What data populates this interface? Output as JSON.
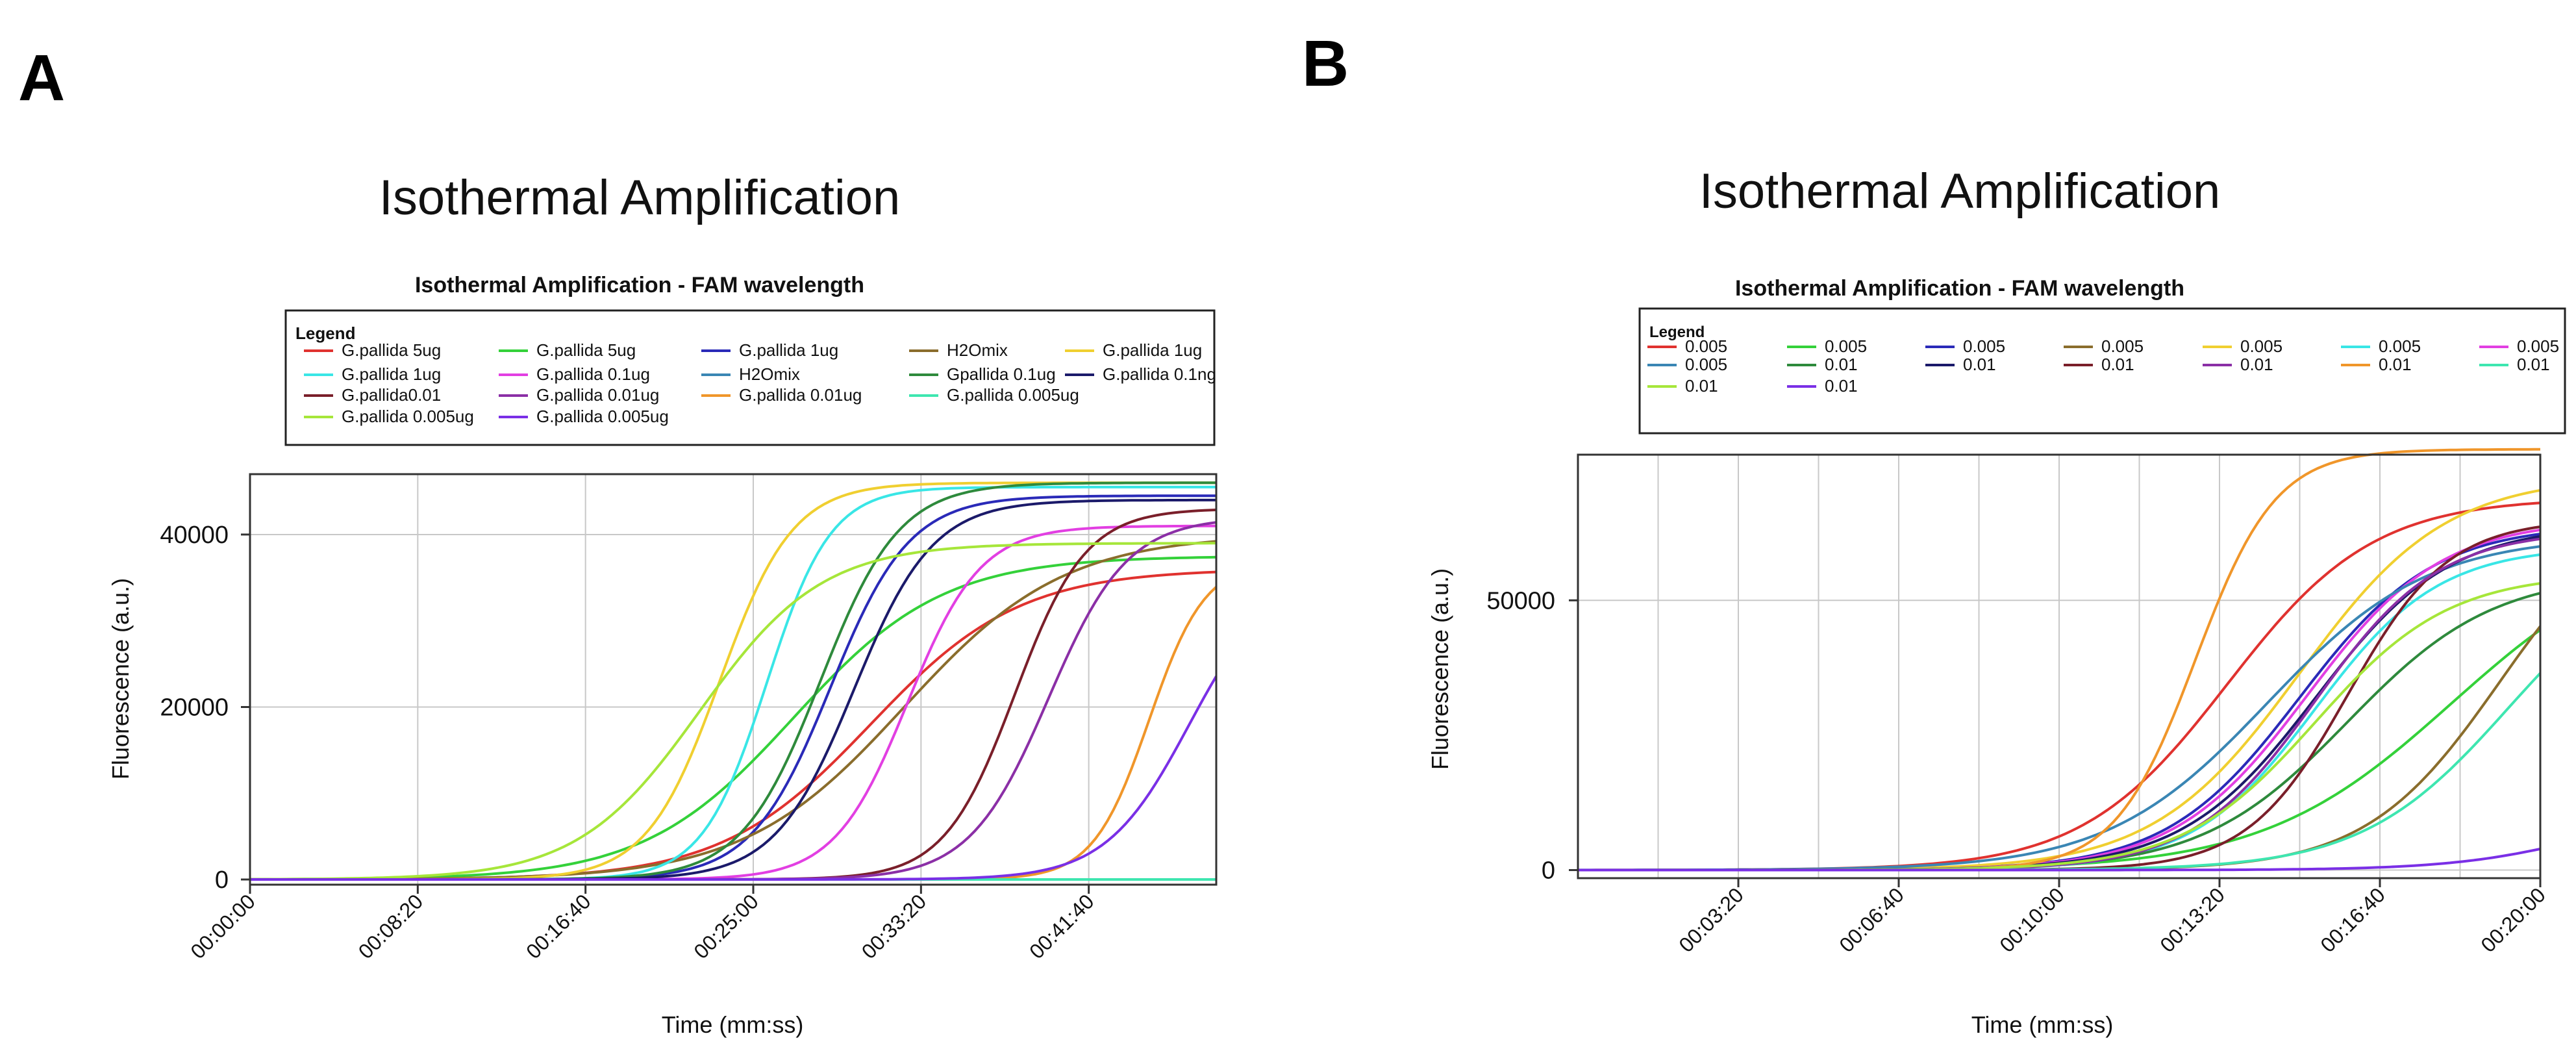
{
  "panels": [
    {
      "letter": "A"
    },
    {
      "letter": "B"
    }
  ],
  "colors": {
    "red": "#e0322f",
    "green": "#34d13a",
    "blue": "#2a2ab8",
    "olive": "#8a6d2c",
    "yellow": "#f0cf30",
    "cyan": "#39e6e6",
    "magenta": "#e23fe2",
    "steel": "#3a86b4",
    "dkgreen": "#2e8a3c",
    "navy": "#1b1a6a",
    "maroon": "#7a1f2a",
    "purple": "#8b2fa6",
    "orange": "#f0962a",
    "aqua": "#3ee6b0",
    "lime": "#a6e63a",
    "violet": "#7a2fe6"
  },
  "chart_data": [
    {
      "type": "line",
      "title": "Isothermal Amplification",
      "subtitle": "Isothermal Amplification - FAM wavelength",
      "xlabel": "Time (mm:ss)",
      "ylabel": "Fluorescence (a.u.)",
      "legend_title": "Legend",
      "legend_position": "top",
      "grid": true,
      "xlim": [
        0,
        2880
      ],
      "ylim": [
        -600,
        47000
      ],
      "x_ticks": [
        {
          "v": 0,
          "label": "00:00:00"
        },
        {
          "v": 500,
          "label": "00:08:20"
        },
        {
          "v": 1000,
          "label": "00:16:40"
        },
        {
          "v": 1500,
          "label": "00:25:00"
        },
        {
          "v": 2000,
          "label": "00:33:20"
        },
        {
          "v": 2500,
          "label": "00:41:40"
        }
      ],
      "x_grid": [
        0,
        500,
        1000,
        1500,
        2000,
        2500
      ],
      "y_ticks": [
        {
          "v": 0,
          "label": "0"
        },
        {
          "v": 20000,
          "label": "20000"
        },
        {
          "v": 40000,
          "label": "40000"
        }
      ],
      "series": [
        {
          "name": "G.pallida 5ug",
          "color": "red",
          "A": 36000,
          "k": 0.0045,
          "mid": 1850
        },
        {
          "name": "G.pallida 5ug",
          "color": "green",
          "A": 37500,
          "k": 0.0045,
          "mid": 1620
        },
        {
          "name": "G.pallida 1ug",
          "color": "blue",
          "A": 44500,
          "k": 0.0085,
          "mid": 1730
        },
        {
          "name": "H2Omix",
          "color": "olive",
          "A": 40000,
          "k": 0.0042,
          "mid": 1950
        },
        {
          "name": "G.pallida 1ug",
          "color": "yellow",
          "A": 46000,
          "k": 0.0092,
          "mid": 1400
        },
        {
          "name": "G.pallida 1ug",
          "color": "cyan",
          "A": 45500,
          "k": 0.0105,
          "mid": 1540
        },
        {
          "name": "G.pallida 0.1ug",
          "color": "magenta",
          "A": 41000,
          "k": 0.0092,
          "mid": 1960
        },
        {
          "name": "H2Omix",
          "color": "steel",
          "A": 0,
          "k": 0.01,
          "mid": 1500
        },
        {
          "name": "Gpallida 0.1ug",
          "color": "dkgreen",
          "A": 46000,
          "k": 0.0085,
          "mid": 1700
        },
        {
          "name": "G.pallida 0.1ng",
          "color": "navy",
          "A": 44000,
          "k": 0.0085,
          "mid": 1800
        },
        {
          "name": "G.pallida0.01",
          "color": "maroon",
          "A": 43000,
          "k": 0.0095,
          "mid": 2280
        },
        {
          "name": "G.pallida 0.01ug",
          "color": "purple",
          "A": 42000,
          "k": 0.0085,
          "mid": 2380
        },
        {
          "name": "G.pallida 0.01ug",
          "color": "orange",
          "A": 37000,
          "k": 0.012,
          "mid": 2680
        },
        {
          "name": "G.pallida 0.005ug",
          "color": "aqua",
          "A": 0,
          "k": 0.01,
          "mid": 1500
        },
        {
          "name": "G.pallida 0.005ug",
          "color": "lime",
          "A": 39000,
          "k": 0.0055,
          "mid": 1340
        },
        {
          "name": "G.pallida 0.005ug",
          "color": "violet",
          "A": 36000,
          "k": 0.008,
          "mid": 2800
        }
      ]
    },
    {
      "type": "line",
      "title": "Isothermal Amplification",
      "subtitle": "Isothermal Amplification - FAM wavelength",
      "xlabel": "Time (mm:ss)",
      "ylabel": "Fluorescence (a.u.)",
      "legend_title": "Legend",
      "legend_position": "top",
      "grid": true,
      "xlim": [
        0,
        1200
      ],
      "ylim": [
        -1500,
        77000
      ],
      "x_ticks": [
        {
          "v": 200,
          "label": "00:03:20"
        },
        {
          "v": 400,
          "label": "00:06:40"
        },
        {
          "v": 600,
          "label": "00:10:00"
        },
        {
          "v": 800,
          "label": "00:13:20"
        },
        {
          "v": 1000,
          "label": "00:16:40"
        },
        {
          "v": 1200,
          "label": "00:20:00"
        }
      ],
      "x_grid": [
        100,
        200,
        300,
        400,
        500,
        600,
        700,
        800,
        900,
        1000,
        1100,
        1200
      ],
      "y_ticks": [
        {
          "v": 0,
          "label": "0"
        },
        {
          "v": 50000,
          "label": "50000"
        }
      ],
      "series": [
        {
          "name": "0.005",
          "color": "red",
          "A": 69000,
          "k": 0.011,
          "mid": 810
        },
        {
          "name": "0.005",
          "color": "green",
          "A": 62000,
          "k": 0.0085,
          "mid": 1090
        },
        {
          "name": "0.005",
          "color": "blue",
          "A": 64000,
          "k": 0.012,
          "mid": 900
        },
        {
          "name": "0.005",
          "color": "olive",
          "A": 70000,
          "k": 0.012,
          "mid": 1150
        },
        {
          "name": "0.005",
          "color": "yellow",
          "A": 73000,
          "k": 0.011,
          "mid": 900
        },
        {
          "name": "0.005",
          "color": "cyan",
          "A": 60000,
          "k": 0.013,
          "mid": 920
        },
        {
          "name": "0.005",
          "color": "magenta",
          "A": 65000,
          "k": 0.012,
          "mid": 910
        },
        {
          "name": "0.005",
          "color": "steel",
          "A": 62000,
          "k": 0.01,
          "mid": 860
        },
        {
          "name": "0.01",
          "color": "dkgreen",
          "A": 55000,
          "k": 0.011,
          "mid": 960
        },
        {
          "name": "0.01",
          "color": "navy",
          "A": 64000,
          "k": 0.012,
          "mid": 920
        },
        {
          "name": "0.01",
          "color": "maroon",
          "A": 65000,
          "k": 0.016,
          "mid": 960
        },
        {
          "name": "0.01",
          "color": "purple",
          "A": 63000,
          "k": 0.013,
          "mid": 920
        },
        {
          "name": "0.01",
          "color": "orange",
          "A": 78000,
          "k": 0.02,
          "mid": 770
        },
        {
          "name": "0.01",
          "color": "aqua",
          "A": 60000,
          "k": 0.011,
          "mid": 1160
        },
        {
          "name": "0.01",
          "color": "lime",
          "A": 55000,
          "k": 0.012,
          "mid": 920
        },
        {
          "name": "0.01",
          "color": "violet",
          "A": 12000,
          "k": 0.012,
          "mid": 1260
        }
      ]
    }
  ]
}
